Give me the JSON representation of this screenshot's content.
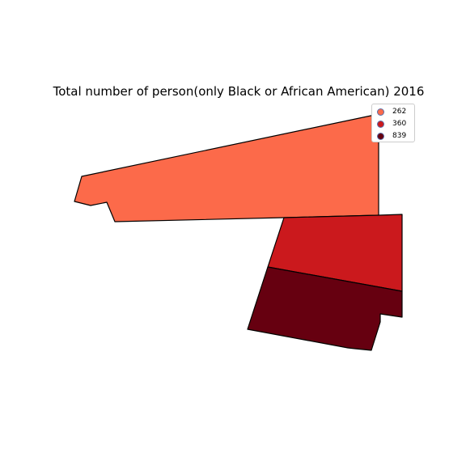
{
  "map": {
    "title": "Total number of person(only Black or African American) 2016",
    "regions": [
      {
        "value": 262,
        "color": "#fc6a4a"
      },
      {
        "value": 360,
        "color": "#cb191d"
      },
      {
        "value": 839,
        "color": "#660010"
      }
    ],
    "legend": {
      "placement": "top-right",
      "items": [
        {
          "label": "262",
          "color": "#fc6a4a"
        },
        {
          "label": "360",
          "color": "#cb191d"
        },
        {
          "label": "839",
          "color": "#660010"
        }
      ]
    }
  }
}
